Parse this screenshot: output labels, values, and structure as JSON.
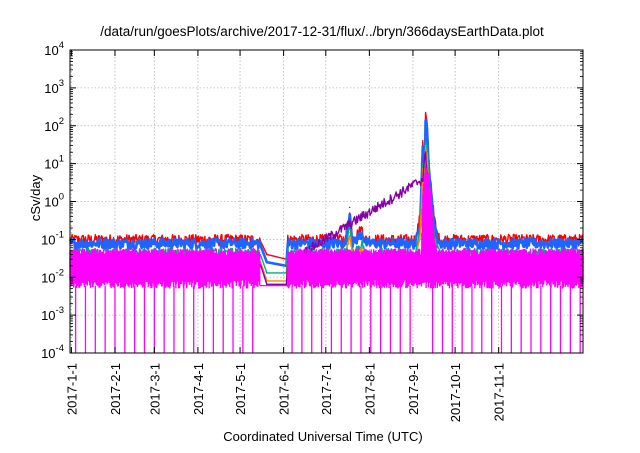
{
  "chart_data": {
    "type": "line",
    "title": "/data/run/goesPlots/archive/2017-12-31/flux/../bryn/366daysEarthData.plot",
    "xlabel": "Coordinated Universal Time (UTC)",
    "ylabel": "cSv/day",
    "y_scale": "log",
    "ylim": [
      0.0001,
      10000
    ],
    "xlim": [
      "2016-12-31",
      "2017-12-31"
    ],
    "grid": true,
    "legend": "none",
    "x_ticks": [
      "2017-1-1",
      "2017-2-1",
      "2017-3-1",
      "2017-4-1",
      "2017-5-1",
      "2017-6-1",
      "2017-7-1",
      "2017-8-1",
      "2017-9-1",
      "2017-10-1",
      "2017-11-1"
    ],
    "y_ticks": [
      {
        "base": "10",
        "exp": "-4",
        "value": 0.0001
      },
      {
        "base": "10",
        "exp": "-3",
        "value": 0.001
      },
      {
        "base": "10",
        "exp": "-2",
        "value": 0.01
      },
      {
        "base": "10",
        "exp": "-1",
        "value": 0.1
      },
      {
        "base": "10",
        "exp": "0",
        "value": 1
      },
      {
        "base": "10",
        "exp": "1",
        "value": 10
      },
      {
        "base": "10",
        "exp": "2",
        "value": 100
      },
      {
        "base": "10",
        "exp": "3",
        "value": 1000
      },
      {
        "base": "10",
        "exp": "4",
        "value": 10000
      }
    ],
    "series": [
      {
        "color": "#ff0000",
        "points": [
          [
            "2016-12-31",
            0.1
          ],
          [
            "2017-05-15",
            0.1
          ],
          [
            "2017-05-20",
            0.04
          ],
          [
            "2017-06-03",
            0.03
          ],
          [
            "2017-06-04",
            0.1
          ],
          [
            "2017-07-15",
            0.1
          ],
          [
            "2017-07-18",
            0.7
          ],
          [
            "2017-07-20",
            0.1
          ],
          [
            "2017-07-27",
            0.2
          ],
          [
            "2017-07-29",
            0.1
          ],
          [
            "2017-09-03",
            0.1
          ],
          [
            "2017-09-06",
            0.4
          ],
          [
            "2017-09-08",
            40
          ],
          [
            "2017-09-09",
            3
          ],
          [
            "2017-09-10",
            200
          ],
          [
            "2017-09-11",
            100
          ],
          [
            "2017-09-12",
            20
          ],
          [
            "2017-09-13",
            5
          ],
          [
            "2017-09-14",
            2
          ],
          [
            "2017-09-16",
            0.4
          ],
          [
            "2017-09-18",
            0.15
          ],
          [
            "2017-09-20",
            0.1
          ],
          [
            "2017-12-31",
            0.1
          ]
        ]
      },
      {
        "color": "#1e64ff",
        "points": [
          [
            "2016-12-31",
            0.08
          ],
          [
            "2017-05-15",
            0.08
          ],
          [
            "2017-05-20",
            0.025
          ],
          [
            "2017-06-03",
            0.02
          ],
          [
            "2017-06-04",
            0.08
          ],
          [
            "2017-07-15",
            0.08
          ],
          [
            "2017-07-18",
            0.45
          ],
          [
            "2017-07-20",
            0.08
          ],
          [
            "2017-07-27",
            0.15
          ],
          [
            "2017-07-29",
            0.08
          ],
          [
            "2017-09-03",
            0.08
          ],
          [
            "2017-09-06",
            0.3
          ],
          [
            "2017-09-08",
            25
          ],
          [
            "2017-09-09",
            2
          ],
          [
            "2017-09-10",
            130
          ],
          [
            "2017-09-11",
            70
          ],
          [
            "2017-09-12",
            14
          ],
          [
            "2017-09-13",
            4
          ],
          [
            "2017-09-14",
            1.5
          ],
          [
            "2017-09-16",
            0.3
          ],
          [
            "2017-09-18",
            0.11
          ],
          [
            "2017-09-20",
            0.08
          ],
          [
            "2017-12-31",
            0.08
          ]
        ]
      },
      {
        "color": "#00aa88",
        "points": [
          [
            "2016-12-31",
            0.045
          ],
          [
            "2017-05-15",
            0.045
          ],
          [
            "2017-05-20",
            0.013
          ],
          [
            "2017-06-03",
            0.013
          ],
          [
            "2017-06-04",
            0.045
          ],
          [
            "2017-07-15",
            0.045
          ],
          [
            "2017-07-18",
            0.25
          ],
          [
            "2017-07-20",
            0.045
          ],
          [
            "2017-07-27",
            0.08
          ],
          [
            "2017-07-29",
            0.045
          ],
          [
            "2017-09-03",
            0.045
          ],
          [
            "2017-09-06",
            0.15
          ],
          [
            "2017-09-08",
            10
          ],
          [
            "2017-09-09",
            1
          ],
          [
            "2017-09-10",
            50
          ],
          [
            "2017-09-11",
            30
          ],
          [
            "2017-09-12",
            6
          ],
          [
            "2017-09-13",
            2
          ],
          [
            "2017-09-14",
            0.8
          ],
          [
            "2017-09-16",
            0.15
          ],
          [
            "2017-09-18",
            0.06
          ],
          [
            "2017-09-20",
            0.045
          ],
          [
            "2017-12-31",
            0.045
          ]
        ]
      },
      {
        "color": "#ff8800",
        "points": [
          [
            "2016-12-31",
            0.03
          ],
          [
            "2017-05-15",
            0.03
          ],
          [
            "2017-05-20",
            0.008
          ],
          [
            "2017-06-03",
            0.008
          ],
          [
            "2017-06-04",
            0.03
          ],
          [
            "2017-07-15",
            0.03
          ],
          [
            "2017-07-18",
            0.15
          ],
          [
            "2017-07-20",
            0.03
          ],
          [
            "2017-07-27",
            0.05
          ],
          [
            "2017-07-29",
            0.03
          ],
          [
            "2017-09-03",
            0.03
          ],
          [
            "2017-09-06",
            0.1
          ],
          [
            "2017-09-08",
            6
          ],
          [
            "2017-09-09",
            0.6
          ],
          [
            "2017-09-10",
            30
          ],
          [
            "2017-09-11",
            18
          ],
          [
            "2017-09-12",
            4
          ],
          [
            "2017-09-13",
            1.2
          ],
          [
            "2017-09-14",
            0.5
          ],
          [
            "2017-09-16",
            0.1
          ],
          [
            "2017-09-18",
            0.04
          ],
          [
            "2017-09-20",
            0.03
          ],
          [
            "2017-12-31",
            0.03
          ]
        ]
      },
      {
        "color": "#8800aa",
        "points": [
          [
            "2016-12-31",
            0.025
          ],
          [
            "2017-05-15",
            0.025
          ],
          [
            "2017-05-20",
            0.0065
          ],
          [
            "2017-06-03",
            0.0065
          ],
          [
            "2017-06-04",
            0.025
          ],
          [
            "2017-09-08",
            4
          ],
          [
            "2017-09-10",
            20
          ],
          [
            "2017-09-12",
            3
          ],
          [
            "2017-09-14",
            0.4
          ],
          [
            "2017-09-18",
            0.03
          ],
          [
            "2017-12-31",
            0.025
          ]
        ]
      },
      {
        "color": "#ff00ff",
        "noisy": true,
        "band": [
          0.005,
          0.05
        ],
        "points": [
          [
            "2016-12-31",
            0.05
          ],
          [
            "2017-05-15",
            0.05
          ],
          [
            "2017-05-20",
            0.006
          ],
          [
            "2017-06-03",
            0.005
          ],
          [
            "2017-06-04",
            0.05
          ],
          [
            "2017-09-07",
            0.05
          ],
          [
            "2017-09-08",
            2
          ],
          [
            "2017-09-10",
            8
          ],
          [
            "2017-09-12",
            5
          ],
          [
            "2017-09-14",
            1
          ],
          [
            "2017-09-16",
            0.1
          ],
          [
            "2017-09-18",
            0.05
          ],
          [
            "2017-12-31",
            0.05
          ]
        ],
        "dropouts": [
          "2017-01-04",
          "2017-01-11",
          "2017-01-18",
          "2017-01-25",
          "2017-02-01",
          "2017-02-08",
          "2017-02-15",
          "2017-02-22",
          "2017-03-01",
          "2017-03-08",
          "2017-03-15",
          "2017-03-22",
          "2017-03-29",
          "2017-04-05",
          "2017-04-12",
          "2017-04-19",
          "2017-04-26",
          "2017-05-03",
          "2017-05-10",
          "2017-06-07",
          "2017-06-14",
          "2017-06-21",
          "2017-06-28",
          "2017-07-05",
          "2017-07-12",
          "2017-07-19",
          "2017-07-26",
          "2017-08-02",
          "2017-08-09",
          "2017-08-16",
          "2017-08-23",
          "2017-08-30",
          "2017-09-15",
          "2017-09-22",
          "2017-09-29",
          "2017-10-06",
          "2017-10-13",
          "2017-10-20",
          "2017-10-27",
          "2017-11-03",
          "2017-11-10",
          "2017-11-17",
          "2017-11-24",
          "2017-12-01",
          "2017-12-08",
          "2017-12-15",
          "2017-12-22",
          "2017-12-29"
        ]
      }
    ],
    "colors": {
      "grid": "#b4b4b4",
      "axis": "#000000"
    }
  }
}
